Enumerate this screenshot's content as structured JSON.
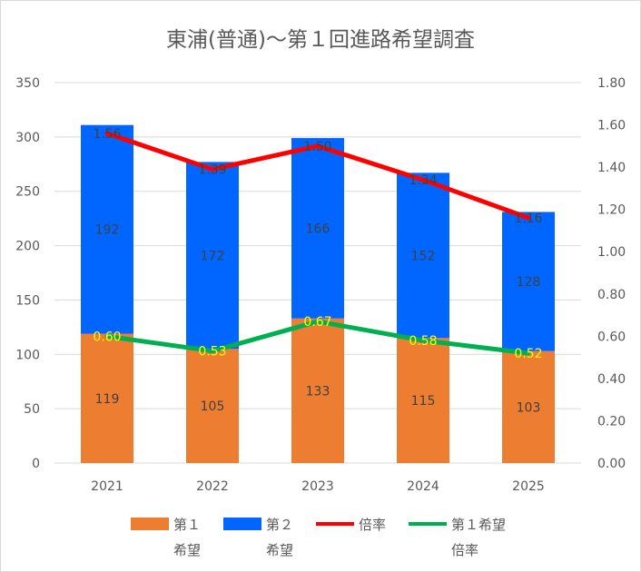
{
  "chart_data": {
    "type": "bar",
    "stacked": true,
    "title": "東浦(普通)～第１回進路希望調査",
    "categories": [
      "2021",
      "2022",
      "2023",
      "2024",
      "2025"
    ],
    "ylim": [
      0,
      350
    ],
    "yticks": [
      "0",
      "50",
      "100",
      "150",
      "200",
      "250",
      "300",
      "350"
    ],
    "y2lim": [
      0,
      1.8
    ],
    "y2ticks": [
      "0.00",
      "0.20",
      "0.40",
      "0.60",
      "0.80",
      "1.00",
      "1.20",
      "1.40",
      "1.60",
      "1.80"
    ],
    "grid": true,
    "legend_position": "bottom",
    "series": [
      {
        "name": "第１希望",
        "legend_lines": [
          "第１",
          "希望"
        ],
        "type": "bar",
        "color": "#ED7D31",
        "values": [
          119,
          105,
          133,
          115,
          103
        ],
        "labels": [
          "119",
          "105",
          "133",
          "115",
          "103"
        ]
      },
      {
        "name": "第２希望",
        "legend_lines": [
          "第２",
          "希望"
        ],
        "type": "bar",
        "color": "#0066FF",
        "values": [
          192,
          172,
          166,
          152,
          128
        ],
        "labels": [
          "192",
          "172",
          "166",
          "152",
          "128"
        ]
      },
      {
        "name": "倍率",
        "legend_lines": [
          "倍率"
        ],
        "type": "line",
        "axis": "right",
        "color": "#FF0000",
        "values": [
          1.56,
          1.39,
          1.5,
          1.34,
          1.16
        ],
        "labels": [
          "1.56",
          "1.39",
          "1.50",
          "1.34",
          "1.16"
        ],
        "label_color": "#404040"
      },
      {
        "name": "第１希望倍率",
        "legend_lines": [
          "第１希望",
          "倍率"
        ],
        "type": "line",
        "axis": "right",
        "color": "#00B050",
        "values": [
          0.6,
          0.53,
          0.67,
          0.58,
          0.52
        ],
        "labels": [
          "0.60",
          "0.53",
          "0.67",
          "0.58",
          "0.52"
        ],
        "label_color": "#FFFF00"
      }
    ]
  }
}
